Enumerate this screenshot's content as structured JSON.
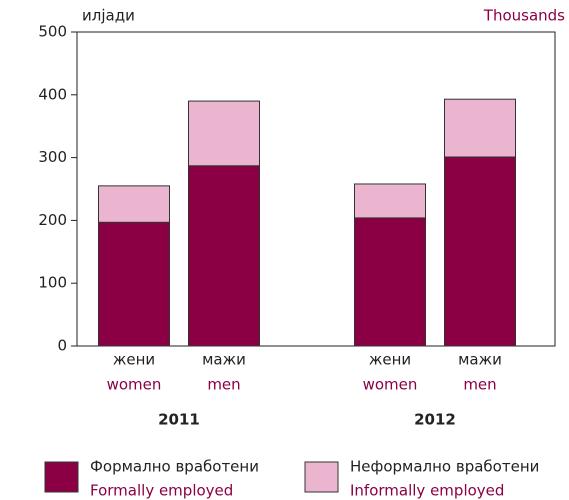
{
  "chart_data": {
    "type": "stacked_bar",
    "y_label": "илјади",
    "y_label_en": "Thousands",
    "groups": [
      "2011",
      "2012"
    ],
    "categories": [
      "жени",
      "мажи",
      "жени",
      "мажи"
    ],
    "categories_en": [
      "women",
      "men",
      "women",
      "men"
    ],
    "series": [
      {
        "name": "Формално вработени",
        "name_en": "Formally employed",
        "color": "#8b0045",
        "values": [
          197,
          287,
          204,
          301
        ]
      },
      {
        "name": "Неформално вработени",
        "name_en": "Informally employed",
        "color": "#ebb5cf",
        "values": [
          58,
          103,
          54,
          92
        ]
      }
    ],
    "ylim": [
      0,
      500
    ],
    "yticks": [
      0,
      100,
      200,
      300,
      400,
      500
    ]
  }
}
